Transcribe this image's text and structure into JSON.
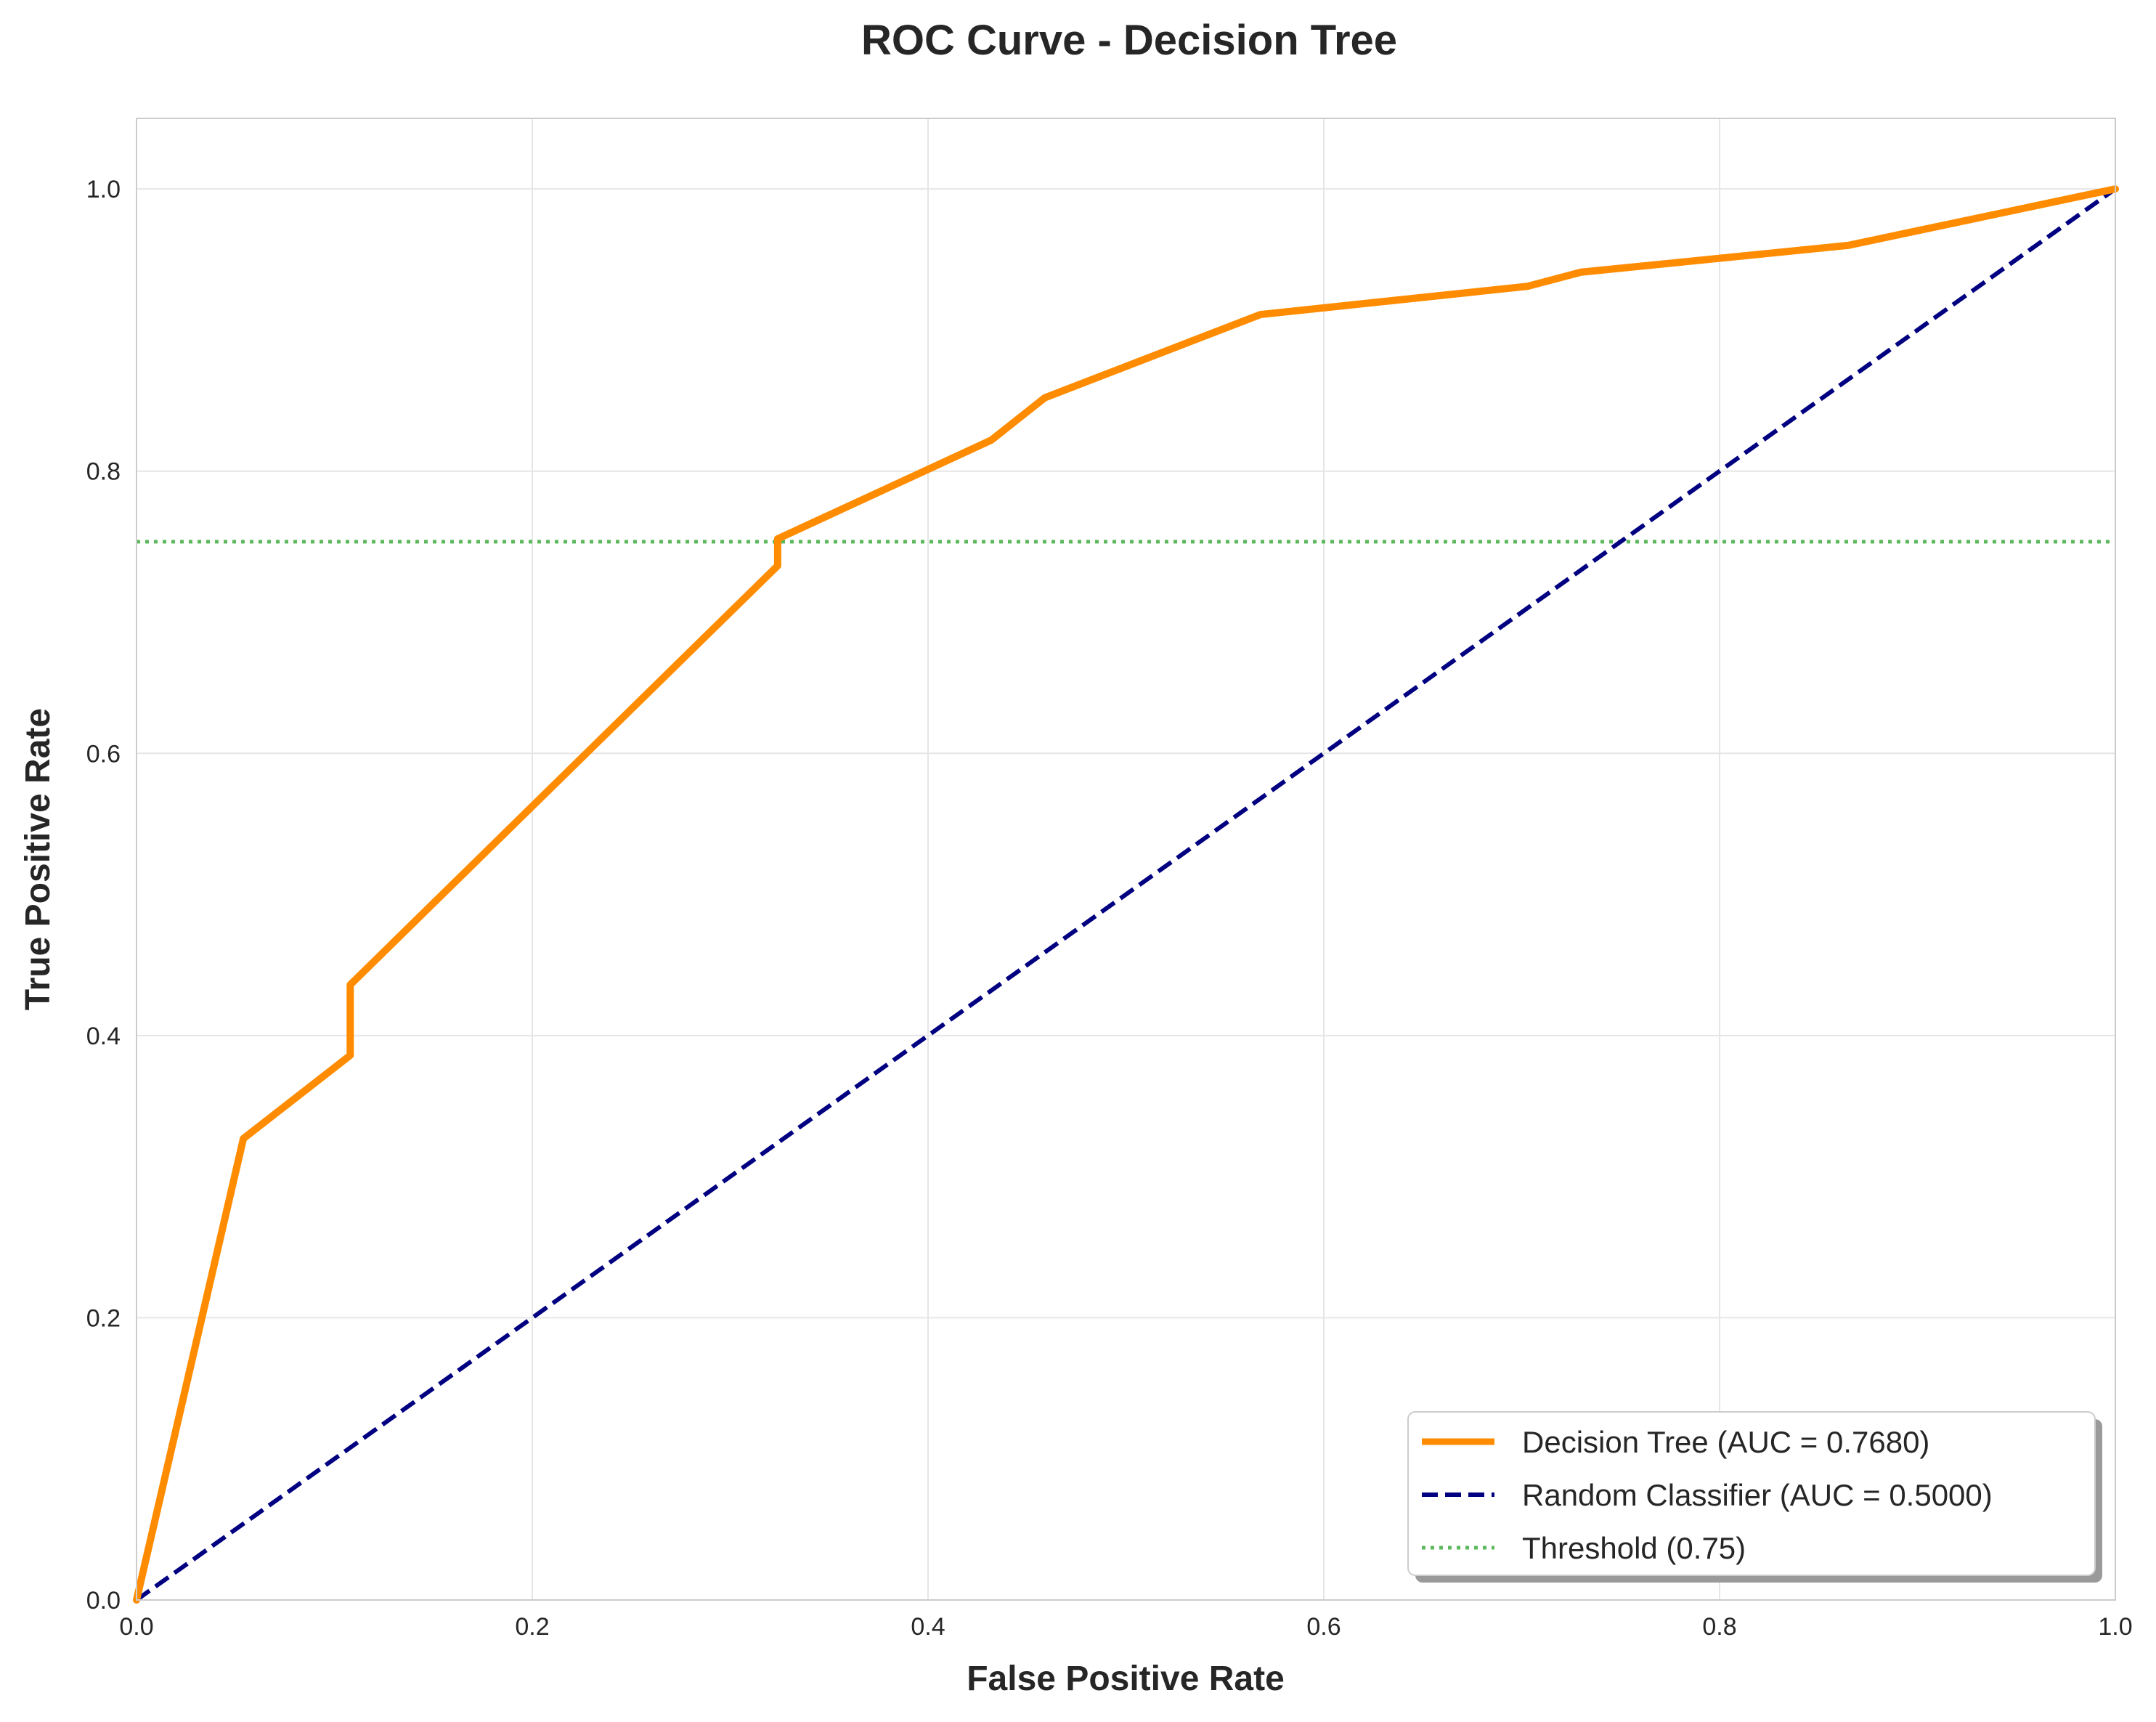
{
  "chart_data": {
    "type": "line",
    "title": "ROC Curve - Decision Tree",
    "xlabel": "False Positive Rate",
    "ylabel": "True Positive Rate",
    "xlim": [
      0,
      1
    ],
    "ylim": [
      0,
      1.05
    ],
    "xticks": [
      "0.0",
      "0.2",
      "0.4",
      "0.6",
      "0.8",
      "1.0"
    ],
    "yticks": [
      "0.0",
      "0.2",
      "0.4",
      "0.6",
      "0.8",
      "1.0"
    ],
    "grid": true,
    "legend_position": "lower-right",
    "series": [
      {
        "name": "Decision Tree (AUC = 0.7680)",
        "style": "solid",
        "color": "#ff8c00",
        "x": [
          0.0,
          0.054,
          0.108,
          0.108,
          0.324,
          0.324,
          0.432,
          0.459,
          0.568,
          0.703,
          0.73,
          0.865,
          1.0
        ],
        "y": [
          0.0,
          0.327,
          0.386,
          0.436,
          0.733,
          0.752,
          0.822,
          0.852,
          0.911,
          0.931,
          0.941,
          0.96,
          1.0
        ]
      },
      {
        "name": "Random Classifier (AUC = 0.5000)",
        "style": "dashed",
        "color": "#000080",
        "x": [
          0,
          1
        ],
        "y": [
          0,
          1
        ]
      },
      {
        "name": "Threshold (0.75)",
        "style": "dotted",
        "color": "#5cb85c",
        "y_value": 0.75
      }
    ]
  }
}
